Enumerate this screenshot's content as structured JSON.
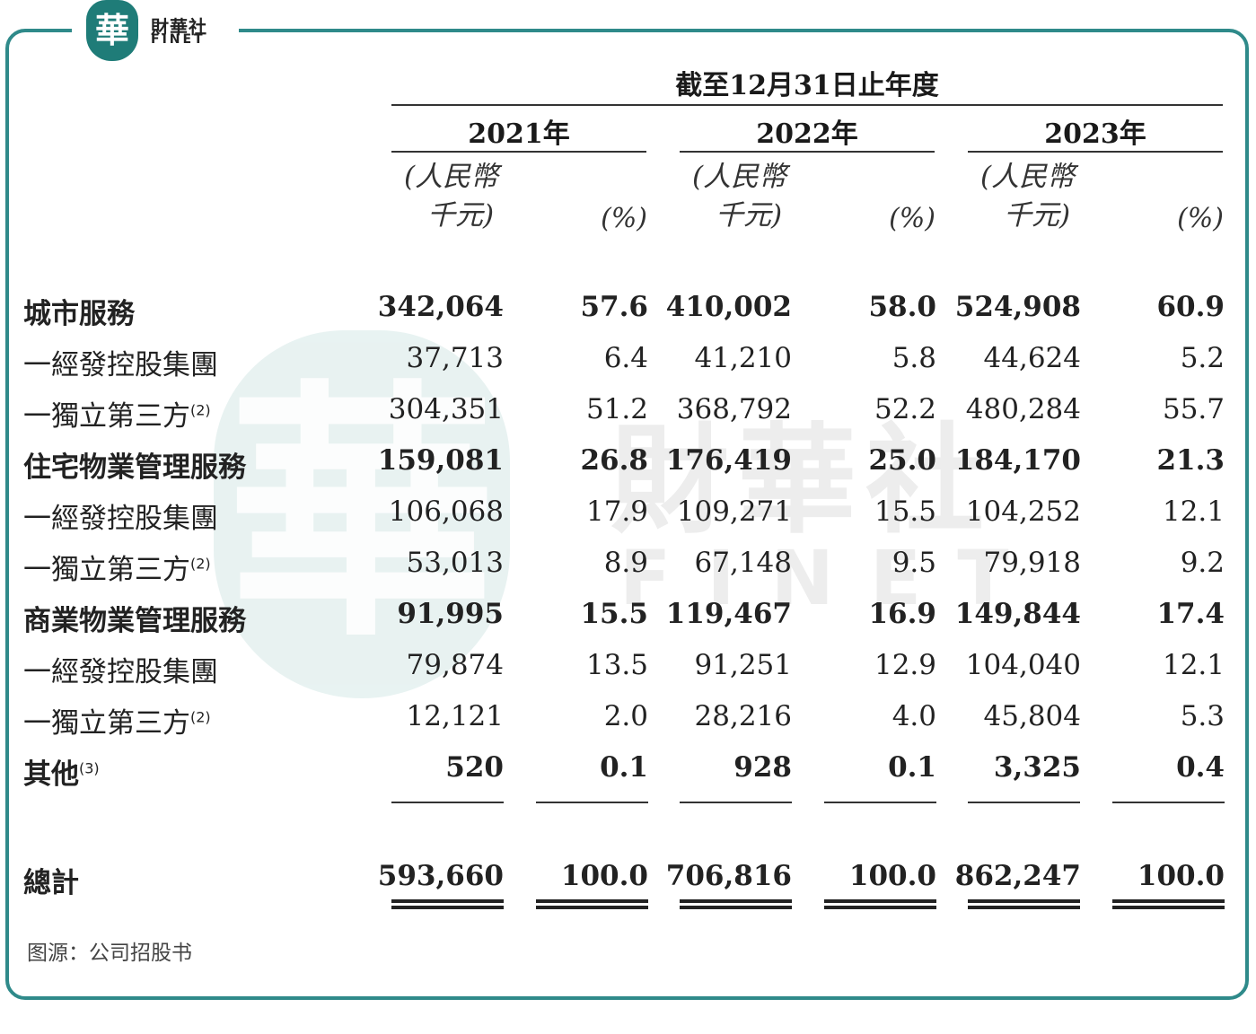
{
  "logo": {
    "seal_char": "華",
    "name_cn": "財華社",
    "name_en": "FINET"
  },
  "watermark": {
    "seal_char": "華",
    "name_cn": "財華社",
    "name_en": "FINET"
  },
  "header": {
    "period": "截至12月31日止年度",
    "years": [
      "2021年",
      "2022年",
      "2023年"
    ],
    "unit_line1": "(人民幣",
    "unit_line2": "千元)",
    "pct_label": "(%)"
  },
  "rows": [
    {
      "label": "城市服務",
      "note": "",
      "bold": true,
      "values": [
        "342,064",
        "57.6",
        "410,002",
        "58.0",
        "524,908",
        "60.9"
      ]
    },
    {
      "label": "一經發控股集團",
      "note": "",
      "bold": false,
      "values": [
        "37,713",
        "6.4",
        "41,210",
        "5.8",
        "44,624",
        "5.2"
      ]
    },
    {
      "label": "一獨立第三方",
      "note": "(2)",
      "bold": false,
      "values": [
        "304,351",
        "51.2",
        "368,792",
        "52.2",
        "480,284",
        "55.7"
      ]
    },
    {
      "label": "住宅物業管理服務",
      "note": "",
      "bold": true,
      "values": [
        "159,081",
        "26.8",
        "176,419",
        "25.0",
        "184,170",
        "21.3"
      ]
    },
    {
      "label": "一經發控股集團",
      "note": "",
      "bold": false,
      "values": [
        "106,068",
        "17.9",
        "109,271",
        "15.5",
        "104,252",
        "12.1"
      ]
    },
    {
      "label": "一獨立第三方",
      "note": "(2)",
      "bold": false,
      "values": [
        "53,013",
        "8.9",
        "67,148",
        "9.5",
        "79,918",
        "9.2"
      ]
    },
    {
      "label": "商業物業管理服務",
      "note": "",
      "bold": true,
      "values": [
        "91,995",
        "15.5",
        "119,467",
        "16.9",
        "149,844",
        "17.4"
      ]
    },
    {
      "label": "一經發控股集團",
      "note": "",
      "bold": false,
      "values": [
        "79,874",
        "13.5",
        "91,251",
        "12.9",
        "104,040",
        "12.1"
      ]
    },
    {
      "label": "一獨立第三方",
      "note": "(2)",
      "bold": false,
      "values": [
        "12,121",
        "2.0",
        "28,216",
        "4.0",
        "45,804",
        "5.3"
      ]
    },
    {
      "label": "其他",
      "note": "(3)",
      "bold": true,
      "values": [
        "520",
        "0.1",
        "928",
        "0.1",
        "3,325",
        "0.4"
      ]
    }
  ],
  "total": {
    "label": "總計",
    "values": [
      "593,660",
      "100.0",
      "706,816",
      "100.0",
      "862,247",
      "100.0"
    ]
  },
  "source": "图源：公司招股书"
}
